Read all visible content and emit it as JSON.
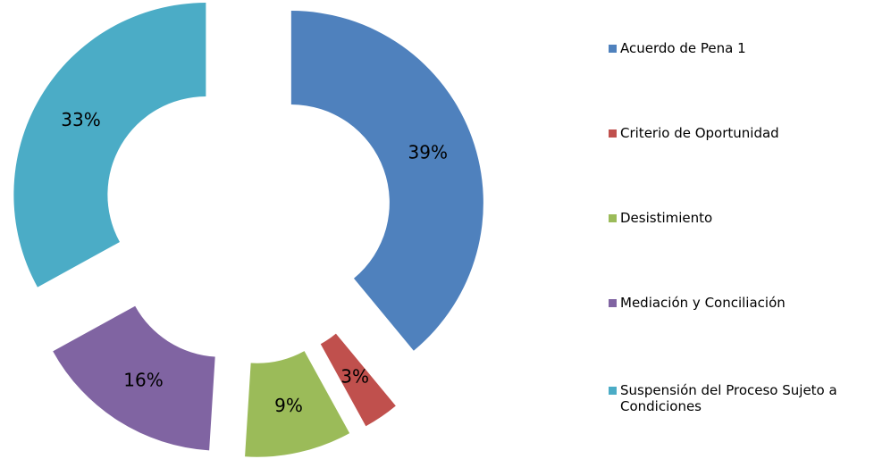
{
  "chart_data": {
    "type": "donut",
    "categories": [
      "Acuerdo de Pena 1",
      "Criterio de Oportunidad",
      "Desistimiento",
      "Mediación y Conciliación",
      "Suspensión del Proceso Sujeto a Condiciones"
    ],
    "series": [
      {
        "values": [
          39,
          3,
          9,
          16,
          33
        ],
        "value_labels": [
          "39%",
          "3%",
          "9%",
          "16%",
          "33%"
        ],
        "colors": [
          "#4f81bd",
          "#c0504d",
          "#9bbb59",
          "#8064a2",
          "#4bacc6"
        ]
      }
    ],
    "legend": "right"
  }
}
